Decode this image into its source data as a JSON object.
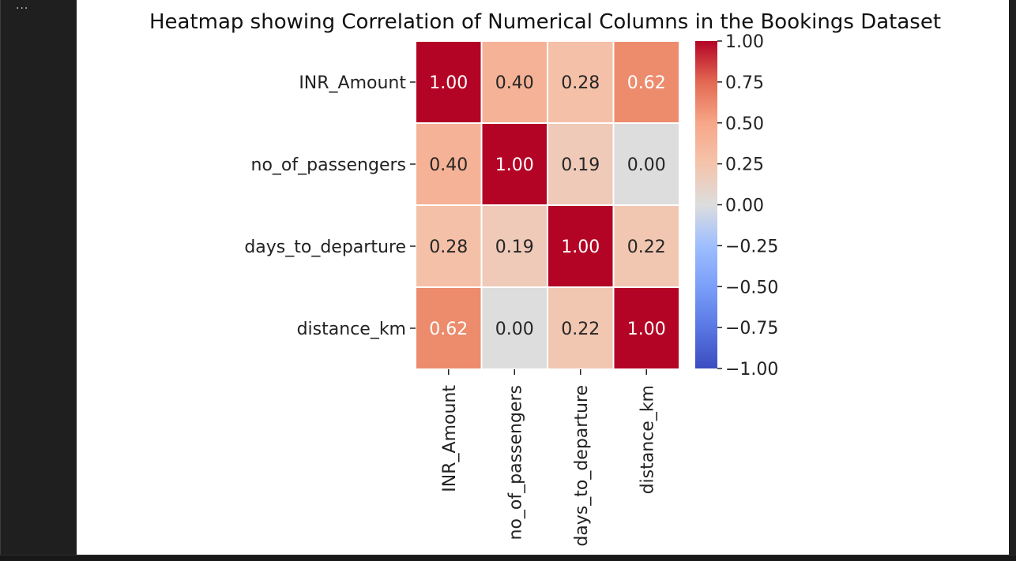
{
  "toolbar": {
    "more_icon": "ellipsis-icon",
    "more_label": "..."
  },
  "chart_data": {
    "type": "heatmap",
    "title": "Heatmap showing Correlation of Numerical Columns in the Bookings Dataset",
    "rows": [
      "INR_Amount",
      "no_of_passengers",
      "days_to_departure",
      "distance_km"
    ],
    "columns": [
      "INR_Amount",
      "no_of_passengers",
      "days_to_departure",
      "distance_km"
    ],
    "values": [
      [
        1.0,
        0.4,
        0.28,
        0.62
      ],
      [
        0.4,
        1.0,
        0.19,
        0.0
      ],
      [
        0.28,
        0.19,
        1.0,
        0.22
      ],
      [
        0.62,
        0.0,
        0.22,
        1.0
      ]
    ],
    "annotations_format": "0.00",
    "colormap": "coolwarm",
    "colormap_stops": [
      "#3b4cc0",
      "#dddddd",
      "#b40426"
    ],
    "vmin": -1,
    "vmax": 1,
    "colorbar_ticks": [
      "1.00",
      "0.75",
      "0.50",
      "0.25",
      "0.00",
      "−0.25",
      "−0.50",
      "−0.75",
      "−1.00"
    ]
  }
}
